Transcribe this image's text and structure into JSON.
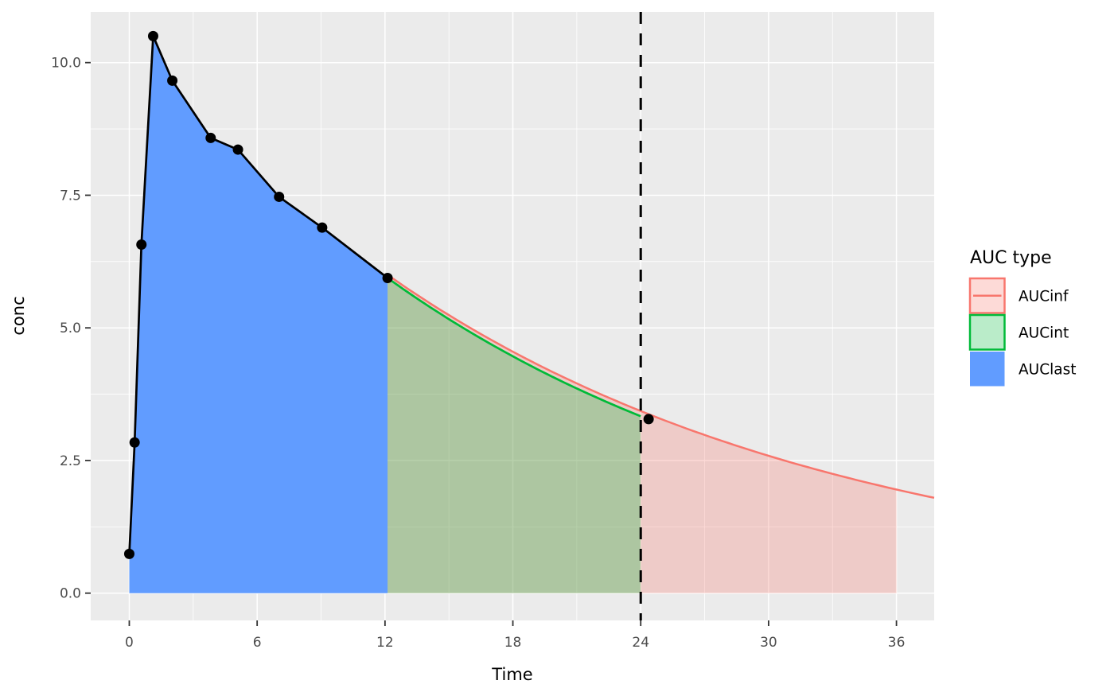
{
  "chart_data": {
    "type": "area",
    "description": "Pharmacokinetic concentration-time curve with shaded AUC regions",
    "xlabel": "Time",
    "ylabel": "conc",
    "xlim": [
      -1.81,
      37.77
    ],
    "ylim": [
      -0.514,
      10.955
    ],
    "x_major_ticks": [
      0,
      6,
      12,
      18,
      24,
      30,
      36
    ],
    "x_tick_labels": [
      "0",
      "6",
      "12",
      "18",
      "24",
      "30",
      "36"
    ],
    "x_minor_ticks": [
      3,
      9,
      15,
      21,
      27,
      33
    ],
    "y_major_ticks": [
      0,
      2.5,
      5,
      7.5,
      10
    ],
    "y_tick_labels": [
      "0.0",
      "2.5",
      "5.0",
      "7.5",
      "10.0"
    ],
    "y_minor_ticks": [
      1.25,
      3.75,
      6.25,
      8.75
    ],
    "grid": true,
    "observed": {
      "time": [
        0,
        0.25,
        0.57,
        1.12,
        2.02,
        3.82,
        5.1,
        7.03,
        9.05,
        12.12,
        24.37
      ],
      "conc": [
        0.74,
        2.84,
        6.57,
        10.5,
        9.66,
        8.58,
        8.36,
        7.47,
        6.89,
        5.94,
        3.28
      ],
      "line_through_first_n": 10
    },
    "regions": {
      "AUClast": {
        "from": 0,
        "to": 12.12,
        "boundary": "observed line",
        "fill": "#619CFF"
      },
      "AUCint": {
        "from": 12.12,
        "to": 24,
        "curve_c0": 5.94,
        "curve_lambda": 0.0486,
        "fill": "rgba(0,186,56,0.27)",
        "line_color": "#00BA38"
      },
      "AUCinf": {
        "from": 12.12,
        "to": 36,
        "line_extends_to": 37.77,
        "curve_c0": 6.0,
        "curve_lambda": 0.047,
        "fill": "rgba(248,118,109,0.27)",
        "line_color": "#F8766D"
      }
    },
    "vline": {
      "x": 24,
      "style": "dashed",
      "color": "#000000"
    },
    "legend": {
      "title": "AUC type",
      "position": "right",
      "entries": [
        {
          "label": "AUCinf",
          "fill": "rgba(248,118,109,0.27)",
          "border": "#F8766D",
          "mid_line": true
        },
        {
          "label": "AUCint",
          "fill": "rgba(0,186,56,0.27)",
          "border": "#00BA38",
          "mid_line": false
        },
        {
          "label": "AUClast",
          "fill": "#619CFF",
          "border": null,
          "mid_line": false
        }
      ]
    },
    "colors": {
      "panel_background": "#EBEBEB",
      "gridline": "#FFFFFF",
      "observed_line": "#000000",
      "observed_point": "#000000",
      "tick_mark": "#333333",
      "tick_label": "#4D4D4D"
    }
  }
}
